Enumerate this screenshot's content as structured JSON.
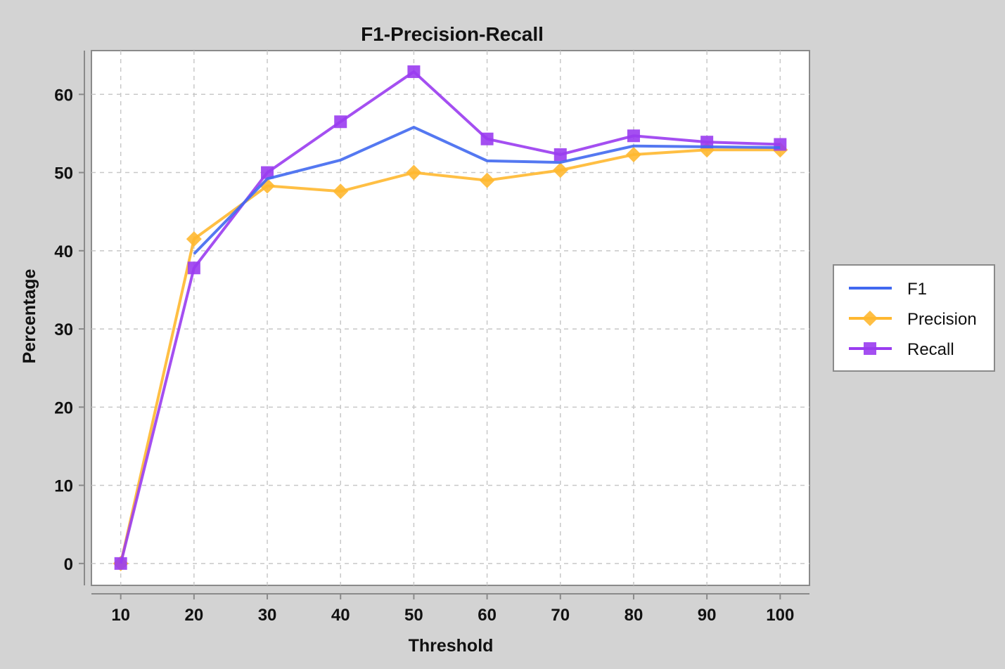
{
  "chart_data": {
    "type": "line",
    "title": "F1-Precision-Recall",
    "xlabel": "Threshold",
    "ylabel": "Percentage",
    "x": [
      10,
      20,
      30,
      40,
      50,
      60,
      70,
      80,
      90,
      100
    ],
    "xlim": [
      6,
      104
    ],
    "ylim": [
      -2.8,
      65.6
    ],
    "xticks": [
      10,
      20,
      30,
      40,
      50,
      60,
      70,
      80,
      90,
      100
    ],
    "yticks": [
      0,
      10,
      20,
      30,
      40,
      50,
      60
    ],
    "grid": true,
    "legend_position": "right",
    "series": [
      {
        "name": "F1",
        "color": "#4169f0",
        "marker": "none",
        "values": [
          0,
          39.6,
          49.2,
          51.6,
          55.8,
          51.5,
          51.3,
          53.4,
          53.3,
          53.2
        ]
      },
      {
        "name": "Precision",
        "color": "#ffb830",
        "marker": "diamond",
        "values": [
          0,
          41.5,
          48.3,
          47.6,
          50.0,
          49.0,
          50.3,
          52.3,
          52.9,
          52.9
        ]
      },
      {
        "name": "Recall",
        "color": "#9a3cf0",
        "marker": "square",
        "values": [
          0,
          37.8,
          50.0,
          56.5,
          62.9,
          54.3,
          52.3,
          54.7,
          53.9,
          53.6
        ]
      }
    ]
  }
}
